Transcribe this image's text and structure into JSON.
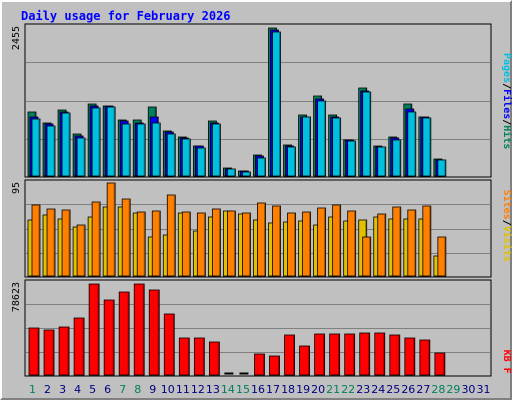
{
  "title": "Daily usage for February 2026",
  "colors": {
    "hits": "#00805c",
    "files": "#0000ff",
    "pages": "#00c0e0",
    "visits": "#e0c000",
    "sites": "#ff8000",
    "kbytes": "#ff0000",
    "weekend_label": "#00805c",
    "weekday_label": "#000080",
    "panel_bg": "#c0c0c0",
    "grid": "#808080"
  },
  "chart_data": [
    {
      "type": "bar",
      "id": "pages-files-hits",
      "max_label": "2455",
      "legend": [
        "Pages",
        "/",
        "Files",
        "/",
        "Hits"
      ],
      "ylim": [
        0,
        2455
      ],
      "categories": [
        "1",
        "2",
        "3",
        "4",
        "5",
        "6",
        "7",
        "8",
        "9",
        "10",
        "11",
        "12",
        "13",
        "14",
        "15",
        "16",
        "17",
        "18",
        "19",
        "20",
        "21",
        "22",
        "23",
        "24",
        "25",
        "26",
        "27",
        "28",
        "29",
        "30",
        "31"
      ],
      "weekend_days": [
        "1",
        "7",
        "8",
        "14",
        "15",
        "21",
        "22",
        "28",
        "29"
      ],
      "series": [
        {
          "name": "Hits",
          "values": [
            1060,
            880,
            1090,
            700,
            1180,
            1160,
            920,
            920,
            1130,
            740,
            650,
            500,
            900,
            130,
            80,
            350,
            2440,
            510,
            1000,
            1320,
            1000,
            600,
            1450,
            500,
            650,
            1190,
            970,
            280,
            0,
            0,
            0
          ]
        },
        {
          "name": "Files",
          "values": [
            980,
            860,
            1050,
            660,
            1150,
            1160,
            900,
            880,
            980,
            720,
            630,
            490,
            880,
            120,
            75,
            330,
            2400,
            490,
            980,
            1270,
            970,
            590,
            1400,
            480,
            620,
            1100,
            970,
            270,
            0,
            0,
            0
          ]
        },
        {
          "name": "Pages",
          "values": [
            940,
            820,
            1040,
            620,
            1120,
            1140,
            850,
            860,
            880,
            690,
            610,
            460,
            850,
            110,
            60,
            300,
            2380,
            480,
            970,
            1240,
            960,
            570,
            1390,
            470,
            600,
            1060,
            960,
            260,
            0,
            0,
            0
          ]
        }
      ]
    },
    {
      "type": "bar",
      "id": "sites-visits",
      "max_label": "95",
      "legend": [
        "Sites",
        "/",
        "Visits"
      ],
      "ylim": [
        0,
        95
      ],
      "categories": [
        "1",
        "2",
        "3",
        "4",
        "5",
        "6",
        "7",
        "8",
        "9",
        "10",
        "11",
        "12",
        "13",
        "14",
        "15",
        "16",
        "17",
        "18",
        "19",
        "20",
        "21",
        "22",
        "23",
        "24",
        "25",
        "26",
        "27",
        "28",
        "29",
        "30",
        "31"
      ],
      "series": [
        {
          "name": "Visits",
          "values": [
            57,
            62,
            58,
            50,
            60,
            70,
            70,
            64,
            40,
            42,
            64,
            46,
            60,
            66,
            63,
            57,
            54,
            55,
            56,
            52,
            60,
            56,
            57,
            60,
            58,
            58,
            58,
            20,
            0,
            0,
            0
          ]
        },
        {
          "name": "Sites",
          "values": [
            73,
            68,
            67,
            52,
            76,
            95,
            79,
            65,
            66,
            83,
            65,
            64,
            68,
            66,
            64,
            75,
            71,
            64,
            65,
            69,
            73,
            66,
            40,
            63,
            70,
            67,
            72,
            40,
            0,
            0,
            0
          ]
        }
      ]
    },
    {
      "type": "bar",
      "id": "kbytes",
      "max_label": "78623",
      "legend": [
        "KB",
        "F"
      ],
      "ylim": [
        0,
        78623
      ],
      "categories": [
        "1",
        "2",
        "3",
        "4",
        "5",
        "6",
        "7",
        "8",
        "9",
        "10",
        "11",
        "12",
        "13",
        "14",
        "15",
        "16",
        "17",
        "18",
        "19",
        "20",
        "21",
        "22",
        "23",
        "24",
        "25",
        "26",
        "27",
        "28",
        "29",
        "30",
        "31"
      ],
      "series": [
        {
          "name": "KB F",
          "values": [
            40000,
            38600,
            41000,
            49000,
            78000,
            64500,
            71000,
            78000,
            73000,
            52000,
            32000,
            32000,
            28000,
            0,
            0,
            18000,
            16500,
            34500,
            25000,
            35000,
            35000,
            35000,
            36000,
            36000,
            34500,
            32000,
            30000,
            19000,
            0,
            0,
            0
          ]
        }
      ]
    }
  ]
}
